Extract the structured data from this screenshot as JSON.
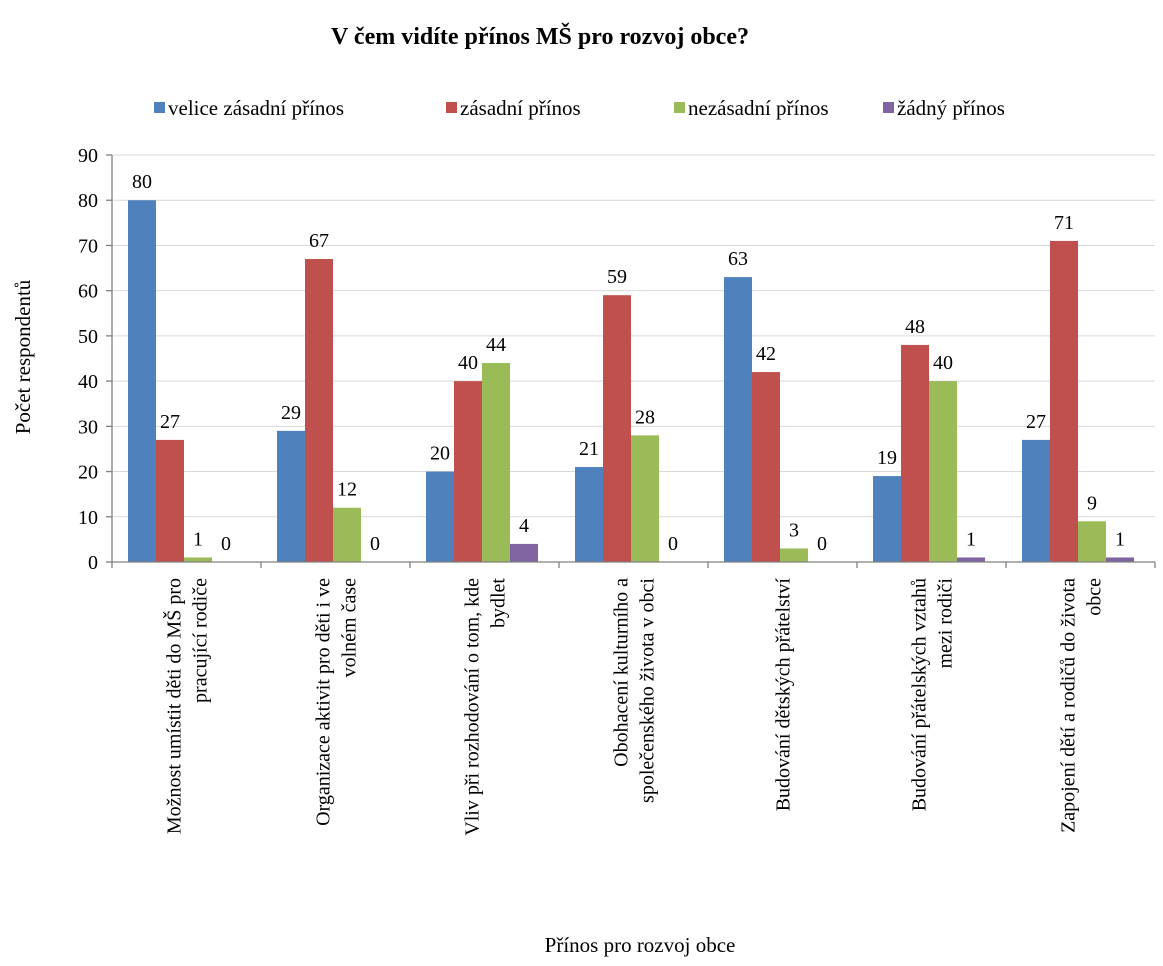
{
  "chart_data": {
    "type": "bar",
    "title": "V čem vidíte přínos MŠ pro rozvoj obce?",
    "xlabel": "Přínos pro rozvoj obce",
    "ylabel": "Počet respondentů",
    "ylim": [
      0,
      90
    ],
    "yticks": [
      0,
      10,
      20,
      30,
      40,
      50,
      60,
      70,
      80,
      90
    ],
    "grid": true,
    "legend_position": "top",
    "categories": [
      [
        "Možnost umístit děti do MŠ pro",
        "pracující rodiče"
      ],
      [
        "Organizace aktivit pro děti i ve",
        "volném čase"
      ],
      [
        "Vliv při rozhodování o tom, kde",
        "bydlet"
      ],
      [
        "Obohacení kulturního a",
        "společenského života v obci"
      ],
      [
        "Budování dětských přátelství"
      ],
      [
        "Budování přátelských vztahů",
        "mezi rodiči"
      ],
      [
        "Zapojení dětí a rodičů do života",
        "obce"
      ]
    ],
    "series": [
      {
        "name": "velice zásadní přínos",
        "color": "#4f81bd",
        "values": [
          80,
          29,
          20,
          21,
          63,
          19,
          27
        ]
      },
      {
        "name": "zásadní přínos",
        "color": "#c0504d",
        "values": [
          27,
          67,
          40,
          59,
          42,
          48,
          71
        ]
      },
      {
        "name": "nezásadní přínos",
        "color": "#9bbb59",
        "values": [
          1,
          12,
          44,
          28,
          3,
          40,
          9
        ]
      },
      {
        "name": "žádný přínos",
        "color": "#8064a2",
        "values": [
          0,
          0,
          4,
          0,
          0,
          1,
          1
        ]
      }
    ]
  }
}
